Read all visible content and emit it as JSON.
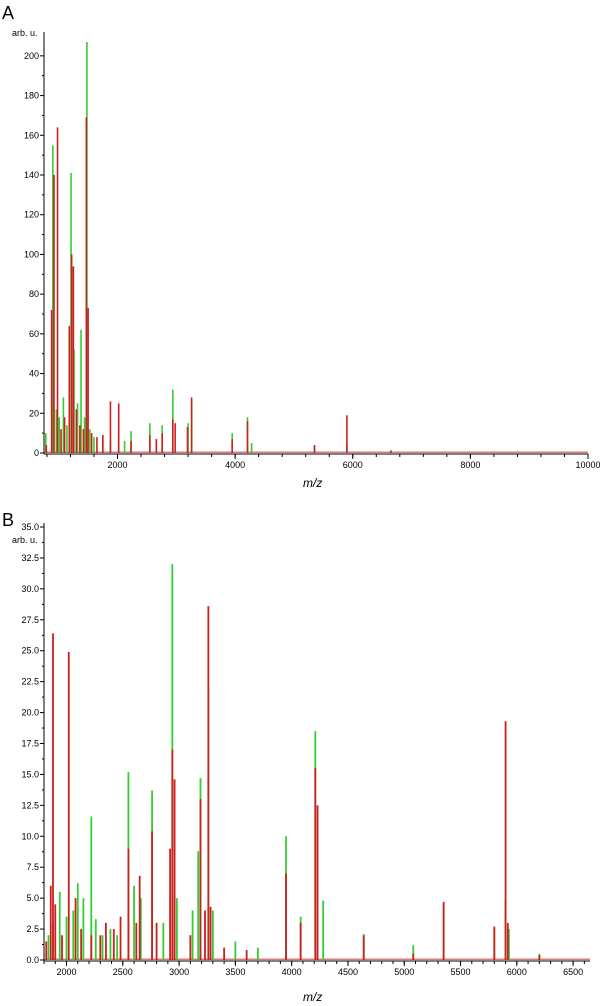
{
  "chart_data": [
    {
      "panel": "A",
      "type": "line",
      "xlabel": "m/z",
      "ylabel": "arb. u.",
      "xlim": [
        750,
        10000
      ],
      "ylim": [
        0,
        210
      ],
      "x_ticks": [
        2000,
        4000,
        6000,
        8000,
        10000
      ],
      "y_ticks": [
        0,
        20,
        40,
        60,
        80,
        100,
        120,
        140,
        160,
        180,
        200
      ],
      "colors": {
        "green": "#33cc33",
        "red": "#cc1f1f"
      },
      "series": [
        {
          "color": "green",
          "peaks": [
            [
              780,
              10
            ],
            [
              900,
              155
            ],
            [
              960,
              22
            ],
            [
              1010,
              18
            ],
            [
              1080,
              28
            ],
            [
              1140,
              14
            ],
            [
              1210,
              141
            ],
            [
              1260,
              52
            ],
            [
              1320,
              25
            ],
            [
              1380,
              62
            ],
            [
              1440,
              18
            ],
            [
              1480,
              207
            ],
            [
              1530,
              12
            ],
            [
              1600,
              8
            ],
            [
              1750,
              9
            ],
            [
              1880,
              6
            ],
            [
              2020,
              5
            ],
            [
              2120,
              6
            ],
            [
              2230,
              11
            ],
            [
              2550,
              15
            ],
            [
              2660,
              7
            ],
            [
              2760,
              14
            ],
            [
              2940,
              32
            ],
            [
              3200,
              15
            ],
            [
              3260,
              26
            ],
            [
              3950,
              10
            ],
            [
              4210,
              18
            ],
            [
              4280,
              5
            ],
            [
              5350,
              4
            ],
            [
              5900,
              5
            ],
            [
              6650,
              1.5
            ]
          ]
        },
        {
          "color": "red",
          "peaks": [
            [
              790,
              4
            ],
            [
              880,
              72
            ],
            [
              920,
              140
            ],
            [
              980,
              164
            ],
            [
              1040,
              12
            ],
            [
              1100,
              18
            ],
            [
              1180,
              64
            ],
            [
              1220,
              100
            ],
            [
              1250,
              94
            ],
            [
              1300,
              22
            ],
            [
              1360,
              14
            ],
            [
              1420,
              12
            ],
            [
              1470,
              169
            ],
            [
              1500,
              73
            ],
            [
              1560,
              10
            ],
            [
              1650,
              8
            ],
            [
              1750,
              9
            ],
            [
              1880,
              26
            ],
            [
              2020,
              25
            ],
            [
              2230,
              6
            ],
            [
              2550,
              9
            ],
            [
              2660,
              7
            ],
            [
              2760,
              10
            ],
            [
              2940,
              17
            ],
            [
              2980,
              15
            ],
            [
              3190,
              13
            ],
            [
              3260,
              28
            ],
            [
              3950,
              7
            ],
            [
              4210,
              16
            ],
            [
              5350,
              4
            ],
            [
              5900,
              19
            ],
            [
              6650,
              1
            ]
          ]
        }
      ]
    },
    {
      "panel": "B",
      "type": "line",
      "xlabel": "m/z",
      "ylabel": "arb. u.",
      "xlim": [
        1800,
        6650
      ],
      "ylim": [
        0,
        35
      ],
      "x_ticks": [
        2000,
        2500,
        3000,
        3500,
        4000,
        4500,
        5000,
        5500,
        6000,
        6500
      ],
      "x_minor_step": 100,
      "y_ticks": [
        0.0,
        2.5,
        5.0,
        7.5,
        10.0,
        12.5,
        15.0,
        17.5,
        20.0,
        22.5,
        25.0,
        27.5,
        30.0,
        32.5,
        35.0
      ],
      "colors": {
        "green": "#33cc33",
        "red": "#cc1f1f"
      },
      "series": [
        {
          "color": "green",
          "peaks": [
            [
              1840,
              2
            ],
            [
              1880,
              3
            ],
            [
              1940,
              5.5
            ],
            [
              2000,
              3.5
            ],
            [
              2060,
              4
            ],
            [
              2100,
              6.2
            ],
            [
              2150,
              5
            ],
            [
              2220,
              11.6
            ],
            [
              2260,
              3.3
            ],
            [
              2320,
              2
            ],
            [
              2390,
              2.5
            ],
            [
              2450,
              2
            ],
            [
              2550,
              15.2
            ],
            [
              2600,
              6
            ],
            [
              2660,
              5
            ],
            [
              2760,
              13.7
            ],
            [
              2860,
              3
            ],
            [
              2940,
              32
            ],
            [
              2980,
              5
            ],
            [
              3120,
              4
            ],
            [
              3170,
              8.8
            ],
            [
              3190,
              14.7
            ],
            [
              3260,
              22
            ],
            [
              3300,
              4
            ],
            [
              3500,
              1.5
            ],
            [
              3700,
              1
            ],
            [
              3950,
              10
            ],
            [
              4080,
              3.5
            ],
            [
              4210,
              18.5
            ],
            [
              4280,
              4.8
            ],
            [
              4640,
              2.1
            ],
            [
              5080,
              1.2
            ],
            [
              5350,
              4.5
            ],
            [
              5800,
              2.5
            ],
            [
              5900,
              5
            ],
            [
              5930,
              2.5
            ],
            [
              6200,
              0.5
            ]
          ]
        },
        {
          "color": "red",
          "peaks": [
            [
              1820,
              1.5
            ],
            [
              1860,
              6
            ],
            [
              1880,
              26.4
            ],
            [
              1900,
              4.5
            ],
            [
              1960,
              2
            ],
            [
              2020,
              24.9
            ],
            [
              2080,
              5
            ],
            [
              2130,
              2.5
            ],
            [
              2220,
              2
            ],
            [
              2300,
              2
            ],
            [
              2350,
              3
            ],
            [
              2420,
              2.5
            ],
            [
              2480,
              3.5
            ],
            [
              2550,
              9
            ],
            [
              2620,
              3
            ],
            [
              2650,
              6.8
            ],
            [
              2760,
              10.4
            ],
            [
              2800,
              3
            ],
            [
              2920,
              9
            ],
            [
              2940,
              17
            ],
            [
              2960,
              14.6
            ],
            [
              3100,
              2
            ],
            [
              3190,
              13
            ],
            [
              3230,
              4
            ],
            [
              3260,
              28.6
            ],
            [
              3280,
              4.3
            ],
            [
              3400,
              1
            ],
            [
              3600,
              0.8
            ],
            [
              3950,
              7
            ],
            [
              4080,
              3
            ],
            [
              4210,
              15.5
            ],
            [
              4230,
              12.5
            ],
            [
              4640,
              2
            ],
            [
              5080,
              0.5
            ],
            [
              5350,
              4.7
            ],
            [
              5800,
              2.7
            ],
            [
              5900,
              19.3
            ],
            [
              5920,
              3
            ],
            [
              6200,
              0.4
            ]
          ]
        }
      ]
    }
  ],
  "panels": {
    "a": {
      "letter": "A",
      "unit": "arb. u.",
      "xlabel": "m/z"
    },
    "b": {
      "letter": "B",
      "unit": "arb. u.",
      "xlabel": "m/z"
    }
  }
}
